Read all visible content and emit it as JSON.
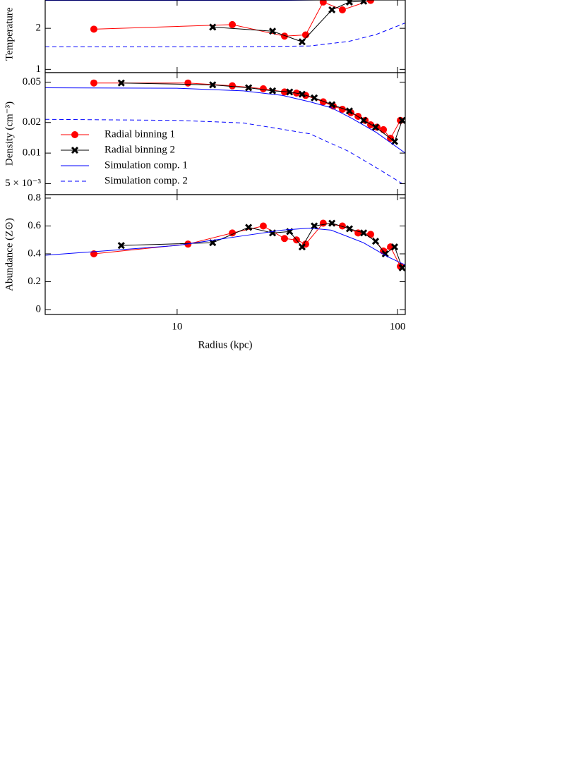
{
  "chart_data": [
    {
      "type": "line",
      "ylabel": "Temperature",
      "xscale": "log",
      "xlim": [
        2.52,
        108.4
      ],
      "ylim": [
        0.92,
        2.69
      ],
      "yticks": [
        1,
        2
      ],
      "series": [
        {
          "color": "#ff0000",
          "marker": "circle",
          "linestyle": "solid",
          "x": [
            4.19,
            17.8,
            30.7,
            38.3,
            46,
            56.2,
            75.5
          ],
          "values": [
            1.98,
            2.09,
            1.81,
            1.84,
            2.64,
            2.45,
            2.68
          ]
        },
        {
          "color": "#000000",
          "marker": "x",
          "linestyle": "solid",
          "x": [
            14.5,
            27.1,
            36.9,
            50.4,
            60.5,
            70.2
          ],
          "values": [
            2.03,
            1.93,
            1.67,
            2.45,
            2.64,
            2.66
          ]
        },
        {
          "color": "#0000ff",
          "linestyle": "solid",
          "x": [
            2.52,
            30,
            60,
            108.4
          ],
          "values": [
            2.68,
            2.68,
            2.7,
            2.75
          ]
        },
        {
          "color": "#0000ff",
          "linestyle": "dashed",
          "x": [
            2.52,
            20,
            40,
            60,
            80,
            108.4
          ],
          "values": [
            1.55,
            1.55,
            1.57,
            1.68,
            1.85,
            2.13
          ]
        }
      ]
    },
    {
      "type": "line",
      "ylabel": "Density (cm⁻³)",
      "xscale": "log",
      "yscale": "log",
      "legend": "lower left",
      "xlim": [
        2.52,
        108.4
      ],
      "ylim": [
        0.0039,
        0.062
      ],
      "yticks": [
        0.05,
        0.02,
        0.01,
        {
          "value": 0.005,
          "label": "5 × 10⁻³"
        }
      ],
      "series": [
        {
          "name": "Radial binning 1",
          "color": "#ff0000",
          "marker": "circle",
          "linestyle": "solid",
          "x": [
            4.19,
            11.2,
            17.8,
            24.6,
            30.7,
            34.8,
            38.3,
            46,
            51.1,
            56.2,
            61.4,
            66.2,
            71.3,
            75.5,
            80.7,
            86.3,
            92.9,
            103
          ],
          "values": [
            0.049,
            0.049,
            0.046,
            0.043,
            0.04,
            0.039,
            0.037,
            0.032,
            0.029,
            0.027,
            0.025,
            0.023,
            0.021,
            0.019,
            0.018,
            0.017,
            0.014,
            0.021
          ]
        },
        {
          "name": "Radial binning 2",
          "color": "#000000",
          "marker": "x",
          "linestyle": "solid",
          "x": [
            5.58,
            14.5,
            21.1,
            27.1,
            32.4,
            36.9,
            41.9,
            50.4,
            60.5,
            70.2,
            79.5,
            97,
            105
          ],
          "values": [
            0.049,
            0.047,
            0.044,
            0.041,
            0.04,
            0.038,
            0.035,
            0.03,
            0.026,
            0.021,
            0.018,
            0.013,
            0.021
          ]
        },
        {
          "name": "Simulation comp. 1",
          "color": "#0000ff",
          "linestyle": "solid",
          "x": [
            2.52,
            10,
            20,
            30,
            40,
            50,
            62,
            80,
            108.4
          ],
          "values": [
            0.044,
            0.0435,
            0.041,
            0.037,
            0.032,
            0.028,
            0.022,
            0.016,
            0.01
          ]
        },
        {
          "name": "Simulation comp. 2",
          "color": "#0000ff",
          "linestyle": "dashed",
          "x": [
            2.52,
            10,
            20,
            40,
            60,
            80,
            108.4
          ],
          "values": [
            0.0215,
            0.021,
            0.0198,
            0.0155,
            0.0104,
            0.0072,
            0.0048
          ]
        }
      ]
    },
    {
      "type": "line",
      "ylabel": "Abundance (Z⊙)",
      "xlabel": "Radius (kpc)",
      "xscale": "log",
      "xlim": [
        2.52,
        108.4
      ],
      "ylim": [
        -0.035,
        0.825
      ],
      "xticks": [
        10,
        100
      ],
      "yticks": [
        0,
        0.2,
        0.4,
        0.6,
        0.8
      ],
      "series": [
        {
          "color": "#ff0000",
          "marker": "circle",
          "linestyle": "solid",
          "x": [
            4.19,
            11.2,
            17.8,
            24.6,
            30.7,
            34.8,
            38.3,
            46,
            56.2,
            66.2,
            75.5,
            86.3,
            92.9,
            103
          ],
          "values": [
            0.4,
            0.47,
            0.55,
            0.6,
            0.51,
            0.5,
            0.47,
            0.62,
            0.6,
            0.55,
            0.54,
            0.42,
            0.45,
            0.31
          ]
        },
        {
          "color": "#000000",
          "marker": "x",
          "linestyle": "solid",
          "x": [
            5.58,
            14.5,
            21.1,
            27.1,
            32.4,
            36.9,
            41.9,
            50.4,
            60.5,
            70.2,
            79.5,
            88,
            97,
            105
          ],
          "values": [
            0.46,
            0.48,
            0.59,
            0.55,
            0.56,
            0.45,
            0.6,
            0.62,
            0.58,
            0.55,
            0.49,
            0.4,
            0.45,
            0.3
          ]
        },
        {
          "color": "#0000ff",
          "linestyle": "solid",
          "x": [
            2.52,
            10,
            20,
            30,
            40,
            50,
            70,
            90,
            108.4
          ],
          "values": [
            0.39,
            0.46,
            0.53,
            0.57,
            0.585,
            0.57,
            0.48,
            0.38,
            0.32
          ]
        }
      ]
    }
  ]
}
